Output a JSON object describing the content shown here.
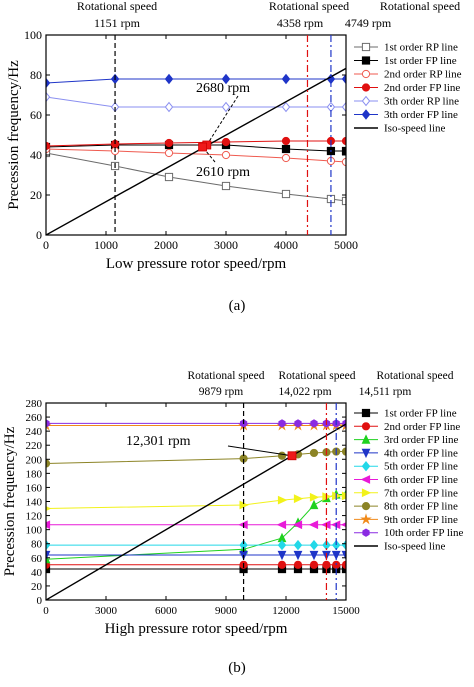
{
  "panels": [
    {
      "label": "(a)",
      "chart_data": {
        "type": "line",
        "xlabel": "Low pressure rotor speed/rpm",
        "ylabel": "Precession frequency/Hz",
        "xlim": [
          0,
          5000
        ],
        "ylim": [
          0,
          100
        ],
        "xticks": [
          0,
          1000,
          2000,
          3000,
          4000,
          5000
        ],
        "yticks": [
          0,
          20,
          40,
          60,
          80,
          100
        ],
        "legend_position": "right",
        "series": [
          {
            "name": "1st order RP line",
            "color": "#6b6b6b",
            "marker": "square-open",
            "x": [
              0,
              1151,
              2050,
              3000,
              4000,
              4749,
              5000
            ],
            "y": [
              41,
              34.5,
              29,
              24.5,
              20.5,
              18,
              17
            ]
          },
          {
            "name": "1st order FP line",
            "color": "#000000",
            "marker": "square",
            "x": [
              0,
              1151,
              2050,
              3000,
              4000,
              4749,
              5000
            ],
            "y": [
              44,
              45,
              45,
              45,
              43,
              42,
              42
            ]
          },
          {
            "name": "2nd order RP line",
            "color": "#ef5a4f",
            "marker": "circle-open",
            "x": [
              0,
              1151,
              2050,
              3000,
              4000,
              4749,
              5000
            ],
            "y": [
              43,
              42,
              41,
              40,
              38.5,
              37,
              36.5
            ]
          },
          {
            "name": "2nd order FP line",
            "color": "#e01010",
            "marker": "circle",
            "x": [
              0,
              1151,
              2050,
              3000,
              4000,
              4749,
              5000
            ],
            "y": [
              44.5,
              45.5,
              46,
              46.5,
              47,
              47,
              47
            ]
          },
          {
            "name": "3th order RP line",
            "color": "#8a8ff0",
            "marker": "diamond-open",
            "x": [
              0,
              1151,
              2050,
              3000,
              4000,
              4749,
              5000
            ],
            "y": [
              69,
              64,
              64,
              64,
              64,
              64,
              64
            ]
          },
          {
            "name": "3th order FP line",
            "color": "#1f35c8",
            "marker": "diamond",
            "x": [
              0,
              1151,
              2050,
              3000,
              4000,
              4749,
              5000
            ],
            "y": [
              76,
              78,
              78,
              78,
              78,
              78,
              78
            ]
          },
          {
            "name": "Iso-speed line",
            "color": "#000000",
            "marker": "none",
            "x": [
              0,
              5000
            ],
            "y": [
              0,
              83.3
            ]
          }
        ],
        "speed_lines": [
          {
            "x": 1151,
            "label": "Rotational speed",
            "value_label": "1151 rpm",
            "color": "#000000",
            "style": "dashed"
          },
          {
            "x": 4358,
            "label": "Rotational speed",
            "value_label": "4358 rpm",
            "color": "#e01010",
            "style": "dashdot"
          },
          {
            "x": 4749,
            "label": "Rotational speed",
            "value_label": "4749 rpm",
            "color": "#1f35c8",
            "style": "dashdot"
          }
        ],
        "annotations": [
          {
            "text": "2680 rpm",
            "x": 2680,
            "y": 45
          },
          {
            "text": "2610 rpm",
            "x": 2610,
            "y": 44
          }
        ]
      }
    },
    {
      "label": "(b)",
      "chart_data": {
        "type": "line",
        "xlabel": "High pressure rotor speed/rpm",
        "ylabel": "Precession frequency/Hz",
        "xlim": [
          0,
          15000
        ],
        "ylim": [
          0,
          280
        ],
        "xticks": [
          0,
          3000,
          6000,
          9000,
          12000,
          15000
        ],
        "yticks": [
          0,
          20,
          40,
          60,
          80,
          100,
          120,
          140,
          160,
          180,
          200,
          220,
          240,
          260,
          280
        ],
        "legend_position": "right",
        "series": [
          {
            "name": "1st order FP line",
            "color": "#000000",
            "marker": "square",
            "x": [
              0,
              9879,
              11800,
              12600,
              13400,
              14022,
              14511,
              15000
            ],
            "y": [
              44,
              44,
              44,
              44,
              44,
              44,
              44,
              44
            ]
          },
          {
            "name": "2nd order FP line",
            "color": "#e01010",
            "marker": "circle",
            "x": [
              0,
              9879,
              11800,
              12600,
              13400,
              14022,
              14511,
              15000
            ],
            "y": [
              50,
              50,
              50,
              50,
              50,
              50,
              50,
              50
            ]
          },
          {
            "name": "3rd order FP line",
            "color": "#1fd11f",
            "marker": "triangle-up",
            "x": [
              0,
              9879,
              11800,
              12600,
              13400,
              14022,
              14511,
              15000
            ],
            "y": [
              58,
              72,
              88,
              110,
              135,
              145,
              150,
              150
            ]
          },
          {
            "name": "4th order FP line",
            "color": "#1f35c8",
            "marker": "triangle-down",
            "x": [
              0,
              9879,
              11800,
              12600,
              13400,
              14022,
              14511,
              15000
            ],
            "y": [
              64,
              64,
              64,
              64,
              64,
              64,
              64,
              64
            ]
          },
          {
            "name": "5th order FP line",
            "color": "#22d8e8",
            "marker": "diamond",
            "x": [
              0,
              9879,
              11800,
              12600,
              13400,
              14022,
              14511,
              15000
            ],
            "y": [
              78,
              78,
              78,
              78,
              78,
              78,
              78,
              78
            ]
          },
          {
            "name": "6th order FP line",
            "color": "#e81ad8",
            "marker": "triangle-left",
            "x": [
              0,
              9879,
              11800,
              12600,
              13400,
              14022,
              14511,
              15000
            ],
            "y": [
              107,
              107,
              107,
              107,
              107,
              107,
              107,
              107
            ]
          },
          {
            "name": "7th order FP line",
            "color": "#f2f21a",
            "marker": "triangle-right",
            "x": [
              0,
              9879,
              11800,
              12600,
              13400,
              14022,
              14511,
              15000
            ],
            "y": [
              130,
              135,
              142,
              144,
              146,
              147,
              148,
              148
            ]
          },
          {
            "name": "8th order FP line",
            "color": "#8c8426",
            "marker": "circle",
            "x": [
              0,
              9879,
              11800,
              12600,
              13400,
              14022,
              14511,
              15000
            ],
            "y": [
              194,
              201,
              205,
              207,
              209,
              210,
              211,
              211
            ]
          },
          {
            "name": "9th order FP line",
            "color": "#f08a1a",
            "marker": "star",
            "x": [
              0,
              9879,
              11800,
              12600,
              13400,
              14022,
              14511,
              15000
            ],
            "y": [
              248,
              248,
              248,
              248,
              248,
              248,
              248,
              248
            ]
          },
          {
            "name": "10th order FP line",
            "color": "#8a2be2",
            "marker": "hexagon",
            "x": [
              0,
              9879,
              11800,
              12600,
              13400,
              14022,
              14511,
              15000
            ],
            "y": [
              251,
              251,
              251,
              251,
              251,
              251,
              251,
              251
            ]
          },
          {
            "name": "Iso-speed line",
            "color": "#000000",
            "marker": "none",
            "x": [
              0,
              15000
            ],
            "y": [
              0,
              250
            ]
          }
        ],
        "speed_lines": [
          {
            "x": 9879,
            "label": "Rotational speed",
            "value_label": "9879 rpm",
            "color": "#000000",
            "style": "dashed"
          },
          {
            "x": 14022,
            "label": "Rotational speed",
            "value_label": "14,022 rpm",
            "color": "#e01010",
            "style": "dashdot"
          },
          {
            "x": 14511,
            "label": "Rotational speed",
            "value_label": "14,511 rpm",
            "color": "#1f35c8",
            "style": "dashdot"
          }
        ],
        "annotations": [
          {
            "text": "12,301 rpm",
            "x": 12301,
            "y": 205
          }
        ]
      }
    }
  ]
}
